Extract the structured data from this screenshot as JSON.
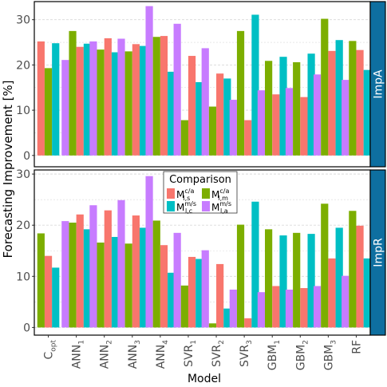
{
  "chart_data": {
    "type": "bar",
    "xlabel": "Model",
    "ylabel": "Forecasting Improvement [%]",
    "categories": [
      {
        "base": "C",
        "sub": "opt"
      },
      {
        "base": "ANN",
        "sub": "1"
      },
      {
        "base": "ANN",
        "sub": "2"
      },
      {
        "base": "ANN",
        "sub": "3"
      },
      {
        "base": "ANN",
        "sub": "4"
      },
      {
        "base": "SVR",
        "sub": "1"
      },
      {
        "base": "SVR",
        "sub": "2"
      },
      {
        "base": "SVR",
        "sub": "3"
      },
      {
        "base": "GBM",
        "sub": "1"
      },
      {
        "base": "GBM",
        "sub": "2"
      },
      {
        "base": "GBM",
        "sub": "3"
      },
      {
        "base": "RF",
        "sub": ""
      }
    ],
    "series_meta": [
      {
        "key": "s",
        "base": "M",
        "sup": "c/a",
        "sub": "l,s",
        "color": "#F8766D"
      },
      {
        "key": "m",
        "base": "M",
        "sup": "c/a",
        "sub": "l,m",
        "color": "#7CAE00"
      },
      {
        "key": "c",
        "base": "M",
        "sup": "m/s",
        "sub": "l,c",
        "color": "#00BFC4"
      },
      {
        "key": "a",
        "base": "M",
        "sup": "m/s",
        "sub": "l,a",
        "color": "#C77CFF"
      }
    ],
    "legend": {
      "title": "Comparison",
      "position": "inside-top-center"
    },
    "panels": [
      {
        "strip": "ImpA",
        "ylim": [
          -2.5,
          34
        ],
        "yticks": [
          0,
          10,
          20,
          30
        ],
        "grid": true,
        "groups": [
          [
            {
              "s": 25.2
            },
            {
              "m": 19.3
            },
            {
              "c": 24.8
            }
          ],
          [
            {
              "a": 21.1
            },
            {
              "m": 27.5
            },
            {
              "s": 24.0
            },
            {
              "c": 24.7
            }
          ],
          [
            {
              "a": 25.2
            },
            {
              "m": 23.4
            },
            {
              "s": 25.9
            },
            {
              "c": 22.8
            }
          ],
          [
            {
              "a": 25.8
            },
            {
              "m": 23.0
            },
            {
              "s": 24.6
            },
            {
              "c": 24.2
            }
          ],
          [
            {
              "a": 33.0
            },
            {
              "m": 26.2
            },
            {
              "s": 26.4
            },
            {
              "c": 18.5
            }
          ],
          [
            {
              "a": 29.1
            },
            {
              "m": 7.8
            },
            {
              "s": 22.0
            },
            {
              "c": 16.2
            }
          ],
          [
            {
              "a": 23.7
            },
            {
              "m": 10.8
            },
            {
              "s": 18.1
            },
            {
              "c": 17.0
            }
          ],
          [
            {
              "a": 12.3
            },
            {
              "m": 27.5
            },
            {
              "s": 7.8
            },
            {
              "c": 31.1
            }
          ],
          [
            {
              "a": 14.4
            },
            {
              "m": 20.9
            },
            {
              "s": 13.5
            },
            {
              "c": 21.8
            }
          ],
          [
            {
              "a": 14.9
            },
            {
              "m": 20.6
            },
            {
              "s": 12.9
            },
            {
              "c": 22.5
            }
          ],
          [
            {
              "a": 17.9
            },
            {
              "m": 30.2
            },
            {
              "s": 23.1
            },
            {
              "c": 25.5
            }
          ],
          [
            {
              "a": 16.7
            },
            {
              "m": 25.3
            },
            {
              "s": 23.3
            },
            {
              "c": 18.9
            }
          ]
        ]
      },
      {
        "strip": "ImpR",
        "ylim": [
          -1.5,
          30.8
        ],
        "yticks": [
          0,
          10,
          20,
          30
        ],
        "grid": true,
        "groups": [
          [
            {
              "m": 18.4
            },
            {
              "s": 14.0
            },
            {
              "c": 11.7
            }
          ],
          [
            {
              "a": 20.8
            },
            {
              "m": 20.5
            },
            {
              "s": 22.1
            },
            {
              "c": 19.2
            }
          ],
          [
            {
              "a": 23.9
            },
            {
              "m": 16.6
            },
            {
              "s": 22.9
            },
            {
              "c": 17.7
            }
          ],
          [
            {
              "a": 24.9
            },
            {
              "m": 16.4
            },
            {
              "s": 21.9
            },
            {
              "c": 19.5
            }
          ],
          [
            {
              "a": 29.6
            },
            {
              "m": 20.9
            },
            {
              "s": 16.1
            },
            {
              "c": 10.7
            }
          ],
          [
            {
              "a": 18.5
            },
            {
              "m": 8.2
            },
            {
              "s": 13.8
            },
            {
              "c": 13.4
            }
          ],
          [
            {
              "a": 15.1
            },
            {
              "m": 0.8
            },
            {
              "s": 12.4
            },
            {
              "c": 3.7
            }
          ],
          [
            {
              "a": 7.4
            },
            {
              "m": 20.1
            },
            {
              "s": 1.8
            },
            {
              "c": 24.6
            }
          ],
          [
            {
              "a": 6.9
            },
            {
              "m": 19.2
            },
            {
              "s": 8.1
            },
            {
              "c": 18.0
            }
          ],
          [
            {
              "a": 7.4
            },
            {
              "m": 18.5
            },
            {
              "s": 7.7
            },
            {
              "c": 18.3
            }
          ],
          [
            {
              "a": 8.1
            },
            {
              "m": 24.2
            },
            {
              "s": 13.5
            },
            {
              "c": 19.5
            }
          ],
          [
            {
              "a": 10.1
            },
            {
              "m": 22.8
            },
            {
              "s": 19.9
            },
            {
              "c": 13.5
            }
          ]
        ]
      }
    ]
  },
  "theme": {
    "panel_border": "#000000",
    "grid_color": "#d9d9d9",
    "strip_fill": "#0e6fa0",
    "strip_text": "#ffffff",
    "axis_text": "#4d4d4d"
  }
}
